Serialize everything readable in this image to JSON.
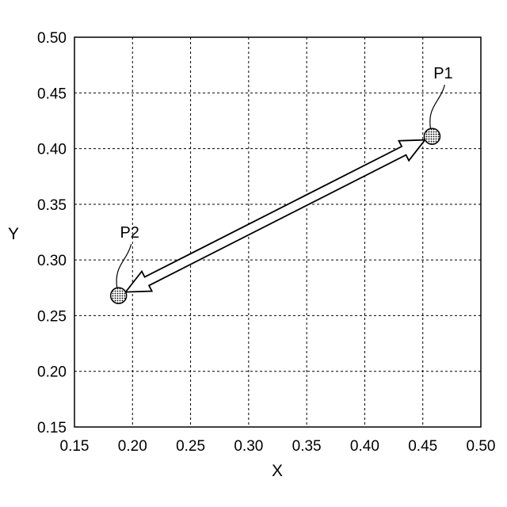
{
  "chart_data": {
    "type": "scatter",
    "xlabel": "X",
    "ylabel": "Y",
    "xlim": [
      0.15,
      0.5
    ],
    "ylim": [
      0.15,
      0.5
    ],
    "x_ticks": [
      "0.15",
      "0.20",
      "0.25",
      "0.30",
      "0.35",
      "0.40",
      "0.45",
      "0.50"
    ],
    "y_ticks": [
      "0.15",
      "0.20",
      "0.25",
      "0.30",
      "0.35",
      "0.40",
      "0.45",
      "0.50"
    ],
    "grid": true,
    "points": [
      {
        "label": "P1",
        "x": 0.458,
        "y": 0.411
      },
      {
        "label": "P2",
        "x": 0.188,
        "y": 0.268
      }
    ],
    "annotations": [
      {
        "type": "double-headed-arrow",
        "from": "P2",
        "to": "P1"
      }
    ]
  }
}
